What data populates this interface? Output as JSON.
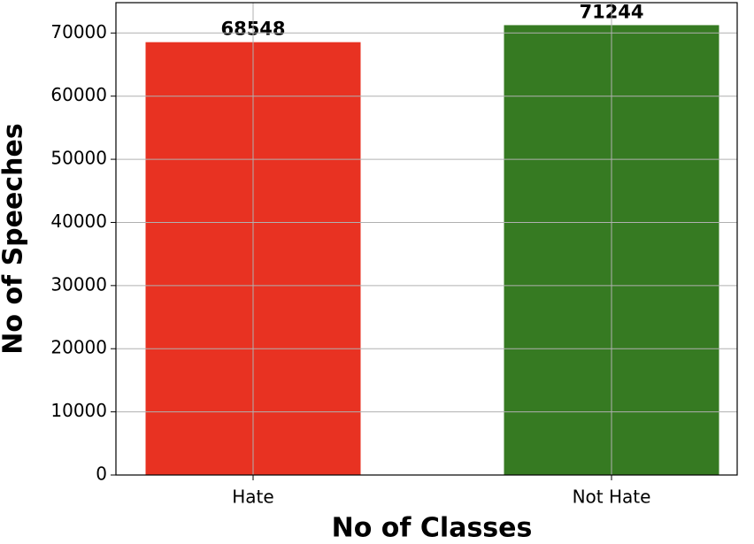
{
  "chart_data": {
    "type": "bar",
    "categories": [
      "Hate",
      "Not Hate"
    ],
    "values": [
      68548,
      71244
    ],
    "colors": [
      "#e83222",
      "#367a22"
    ],
    "xlabel": "No of Classes",
    "ylabel": "No of Speeches",
    "ylim": [
      0,
      74806
    ],
    "yticks": [
      0,
      10000,
      20000,
      30000,
      40000,
      50000,
      60000,
      70000
    ],
    "grid": true
  }
}
